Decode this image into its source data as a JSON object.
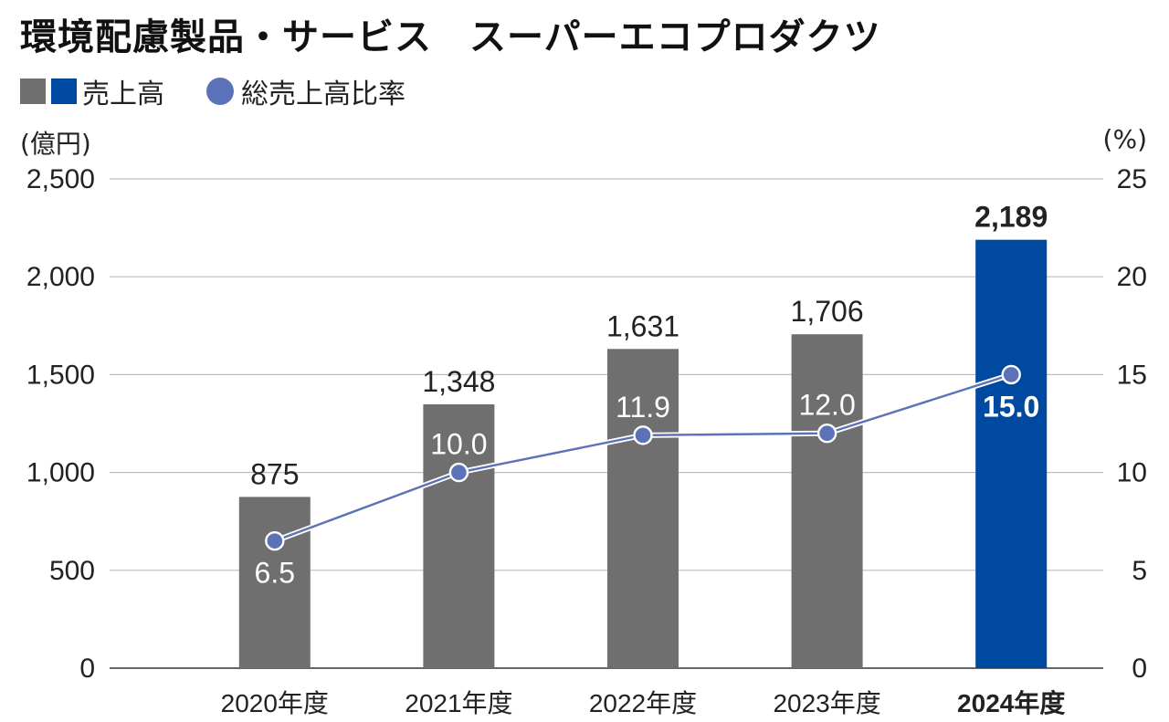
{
  "title": "環境配慮製品・サービス　スーパーエコプロダクツ",
  "legend": {
    "bar_label": "売上高",
    "line_label": "総売上高比率"
  },
  "units": {
    "left": "(億円)",
    "right": "(%)"
  },
  "colors": {
    "bar_default": "#6f6f6f",
    "bar_highlight": "#0049a0",
    "line": "#5b72b8",
    "grid": "#bdbdbd",
    "axis": "#333333"
  },
  "chart_data": {
    "type": "bar",
    "categories": [
      "2020年度",
      "2021年度",
      "2022年度",
      "2023年度",
      "2024年度"
    ],
    "highlight_index": 4,
    "series": [
      {
        "name": "売上高",
        "type": "bar",
        "axis": "left",
        "values": [
          875,
          1348,
          1631,
          1706,
          2189
        ],
        "labels": [
          "875",
          "1,348",
          "1,631",
          "1,706",
          "2,189"
        ]
      },
      {
        "name": "総売上高比率",
        "type": "line",
        "axis": "right",
        "values": [
          6.5,
          10.0,
          11.9,
          12.0,
          15.0
        ],
        "labels": [
          "6.5",
          "10.0",
          "11.9",
          "12.0",
          "15.0"
        ]
      }
    ],
    "y_left": {
      "min": 0,
      "max": 2500,
      "ticks": [
        0,
        500,
        1000,
        1500,
        2000,
        2500
      ],
      "tick_labels": [
        "0",
        "500",
        "1,000",
        "1,500",
        "2,000",
        "2,500"
      ]
    },
    "y_right": {
      "min": 0,
      "max": 25,
      "ticks": [
        0,
        5,
        10,
        15,
        20,
        25
      ],
      "tick_labels": [
        "0",
        "5",
        "10",
        "15",
        "20",
        "25"
      ]
    },
    "grid": true
  }
}
